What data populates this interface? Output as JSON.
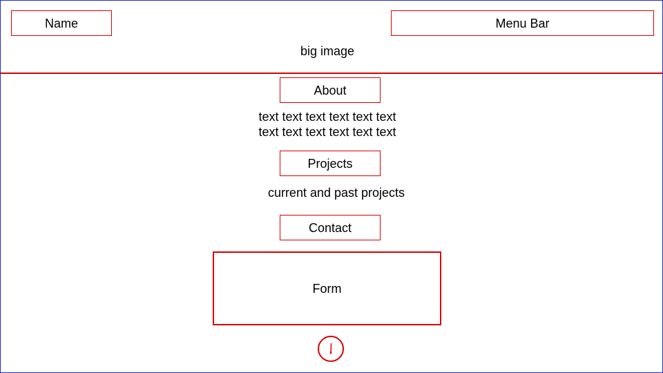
{
  "wireframe": {
    "name": "Name",
    "menu_bar": "Menu Bar",
    "hero_text": "big image",
    "about": {
      "heading": "About",
      "lines": [
        "text text text text text text",
        "text text text text text text"
      ]
    },
    "projects": {
      "heading": "Projects",
      "text": "current and past projects"
    },
    "contact": {
      "heading": "Contact",
      "form_label": "Form"
    },
    "scroll_icon": "arrow-down-circle-icon",
    "colors": {
      "outline": "#d80000",
      "frame": "#1f2bd1",
      "text": "#000000"
    }
  }
}
